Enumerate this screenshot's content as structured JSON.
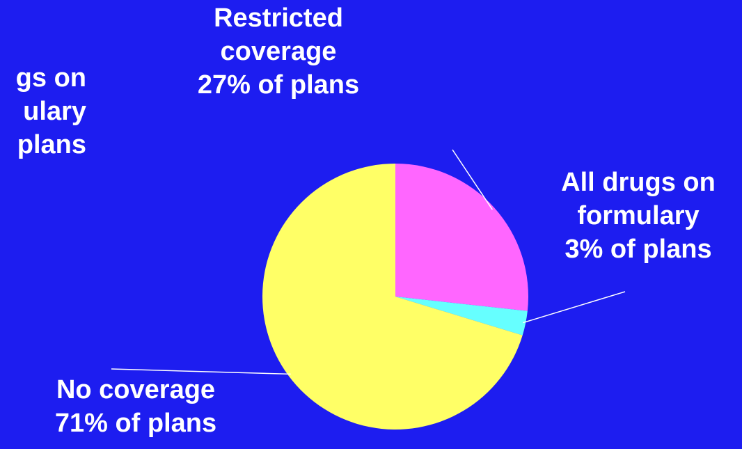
{
  "chart_data": {
    "type": "pie",
    "slices": [
      {
        "label_lines": [
          "Restricted",
          "coverage",
          "27% of plans"
        ],
        "value": 27,
        "color": "#ff66ff"
      },
      {
        "label_lines": [
          "All drugs on",
          "formulary",
          "3% of plans"
        ],
        "value": 3,
        "color": "#66ffff"
      },
      {
        "label_lines": [
          "No coverage",
          "71% of plans"
        ],
        "value": 71,
        "color": "#ffff66"
      }
    ],
    "cropped_label_lines": [
      "gs on",
      "ulary",
      "plans"
    ],
    "background_color": "#1d1df0",
    "label_color": "#ffffff"
  }
}
